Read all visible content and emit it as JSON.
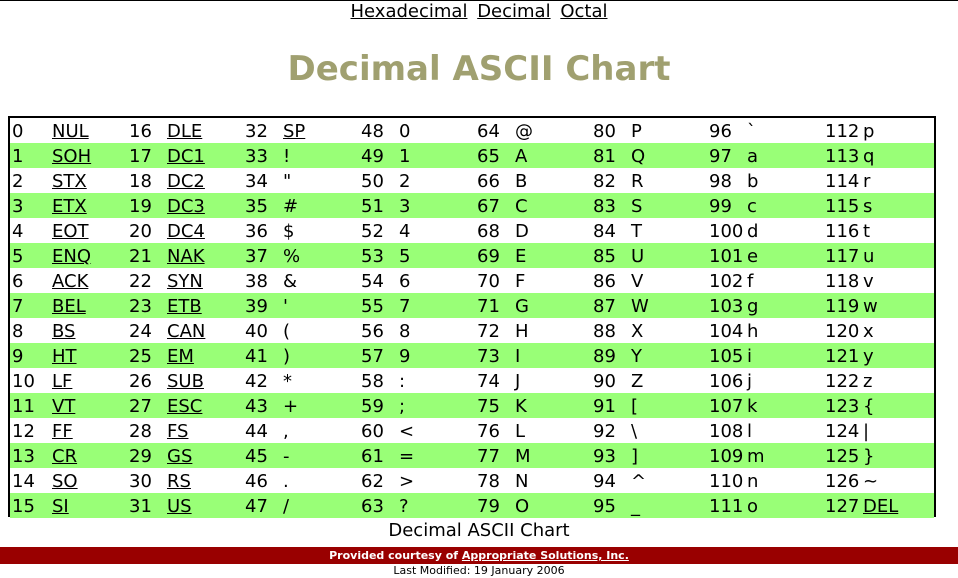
{
  "nav": {
    "hex": "Hexadecimal",
    "dec": "Decimal",
    "oct": "Octal"
  },
  "title": "Decimal ASCII Chart",
  "caption": "Decimal ASCII Chart",
  "footer": {
    "prefix": "Provided courtesy of ",
    "link": "Appropriate Solutions, Inc.",
    "modified": "Last Modified: 19 January 2006"
  },
  "colors": {
    "title": "#a0a070",
    "row_alt": "#99ff77",
    "footer_bg": "#990000"
  },
  "table": [
    [
      [
        "0",
        "NUL",
        true
      ],
      [
        "16",
        "DLE",
        true
      ],
      [
        "32",
        "SP",
        true
      ],
      [
        "48",
        "0",
        false
      ],
      [
        "64",
        "@",
        false
      ],
      [
        "80",
        "P",
        false
      ],
      [
        "96",
        "`",
        false
      ],
      [
        "112",
        "p",
        false
      ]
    ],
    [
      [
        "1",
        "SOH",
        true
      ],
      [
        "17",
        "DC1",
        true
      ],
      [
        "33",
        "!",
        false
      ],
      [
        "49",
        "1",
        false
      ],
      [
        "65",
        "A",
        false
      ],
      [
        "81",
        "Q",
        false
      ],
      [
        "97",
        "a",
        false
      ],
      [
        "113",
        "q",
        false
      ]
    ],
    [
      [
        "2",
        "STX",
        true
      ],
      [
        "18",
        "DC2",
        true
      ],
      [
        "34",
        "\"",
        false
      ],
      [
        "50",
        "2",
        false
      ],
      [
        "66",
        "B",
        false
      ],
      [
        "82",
        "R",
        false
      ],
      [
        "98",
        "b",
        false
      ],
      [
        "114",
        "r",
        false
      ]
    ],
    [
      [
        "3",
        "ETX",
        true
      ],
      [
        "19",
        "DC3",
        true
      ],
      [
        "35",
        "#",
        false
      ],
      [
        "51",
        "3",
        false
      ],
      [
        "67",
        "C",
        false
      ],
      [
        "83",
        "S",
        false
      ],
      [
        "99",
        "c",
        false
      ],
      [
        "115",
        "s",
        false
      ]
    ],
    [
      [
        "4",
        "EOT",
        true
      ],
      [
        "20",
        "DC4",
        true
      ],
      [
        "36",
        "$",
        false
      ],
      [
        "52",
        "4",
        false
      ],
      [
        "68",
        "D",
        false
      ],
      [
        "84",
        "T",
        false
      ],
      [
        "100",
        "d",
        false
      ],
      [
        "116",
        "t",
        false
      ]
    ],
    [
      [
        "5",
        "ENQ",
        true
      ],
      [
        "21",
        "NAK",
        true
      ],
      [
        "37",
        "%",
        false
      ],
      [
        "53",
        "5",
        false
      ],
      [
        "69",
        "E",
        false
      ],
      [
        "85",
        "U",
        false
      ],
      [
        "101",
        "e",
        false
      ],
      [
        "117",
        "u",
        false
      ]
    ],
    [
      [
        "6",
        "ACK",
        true
      ],
      [
        "22",
        "SYN",
        true
      ],
      [
        "38",
        "&",
        false
      ],
      [
        "54",
        "6",
        false
      ],
      [
        "70",
        "F",
        false
      ],
      [
        "86",
        "V",
        false
      ],
      [
        "102",
        "f",
        false
      ],
      [
        "118",
        "v",
        false
      ]
    ],
    [
      [
        "7",
        "BEL",
        true
      ],
      [
        "23",
        "ETB",
        true
      ],
      [
        "39",
        "'",
        false
      ],
      [
        "55",
        "7",
        false
      ],
      [
        "71",
        "G",
        false
      ],
      [
        "87",
        "W",
        false
      ],
      [
        "103",
        "g",
        false
      ],
      [
        "119",
        "w",
        false
      ]
    ],
    [
      [
        "8",
        "BS",
        true
      ],
      [
        "24",
        "CAN",
        true
      ],
      [
        "40",
        "(",
        false
      ],
      [
        "56",
        "8",
        false
      ],
      [
        "72",
        "H",
        false
      ],
      [
        "88",
        "X",
        false
      ],
      [
        "104",
        "h",
        false
      ],
      [
        "120",
        "x",
        false
      ]
    ],
    [
      [
        "9",
        "HT",
        true
      ],
      [
        "25",
        "EM",
        true
      ],
      [
        "41",
        ")",
        false
      ],
      [
        "57",
        "9",
        false
      ],
      [
        "73",
        "I",
        false
      ],
      [
        "89",
        "Y",
        false
      ],
      [
        "105",
        "i",
        false
      ],
      [
        "121",
        "y",
        false
      ]
    ],
    [
      [
        "10",
        "LF",
        true
      ],
      [
        "26",
        "SUB",
        true
      ],
      [
        "42",
        "*",
        false
      ],
      [
        "58",
        ":",
        false
      ],
      [
        "74",
        "J",
        false
      ],
      [
        "90",
        "Z",
        false
      ],
      [
        "106",
        "j",
        false
      ],
      [
        "122",
        "z",
        false
      ]
    ],
    [
      [
        "11",
        "VT",
        true
      ],
      [
        "27",
        "ESC",
        true
      ],
      [
        "43",
        "+",
        false
      ],
      [
        "59",
        ";",
        false
      ],
      [
        "75",
        "K",
        false
      ],
      [
        "91",
        "[",
        false
      ],
      [
        "107",
        "k",
        false
      ],
      [
        "123",
        "{",
        false
      ]
    ],
    [
      [
        "12",
        "FF",
        true
      ],
      [
        "28",
        "FS",
        true
      ],
      [
        "44",
        ",",
        false
      ],
      [
        "60",
        "<",
        false
      ],
      [
        "76",
        "L",
        false
      ],
      [
        "92",
        "\\",
        false
      ],
      [
        "108",
        "l",
        false
      ],
      [
        "124",
        "|",
        false
      ]
    ],
    [
      [
        "13",
        "CR",
        true
      ],
      [
        "29",
        "GS",
        true
      ],
      [
        "45",
        "-",
        false
      ],
      [
        "61",
        "=",
        false
      ],
      [
        "77",
        "M",
        false
      ],
      [
        "93",
        "]",
        false
      ],
      [
        "109",
        "m",
        false
      ],
      [
        "125",
        "}",
        false
      ]
    ],
    [
      [
        "14",
        "SO",
        true
      ],
      [
        "30",
        "RS",
        true
      ],
      [
        "46",
        ".",
        false
      ],
      [
        "62",
        ">",
        false
      ],
      [
        "78",
        "N",
        false
      ],
      [
        "94",
        "^",
        false
      ],
      [
        "110",
        "n",
        false
      ],
      [
        "126",
        "~",
        false
      ]
    ],
    [
      [
        "15",
        "SI",
        true
      ],
      [
        "31",
        "US",
        true
      ],
      [
        "47",
        "/",
        false
      ],
      [
        "63",
        "?",
        false
      ],
      [
        "79",
        "O",
        false
      ],
      [
        "95",
        "_",
        false
      ],
      [
        "111",
        "o",
        false
      ],
      [
        "127",
        "DEL",
        true
      ]
    ]
  ]
}
